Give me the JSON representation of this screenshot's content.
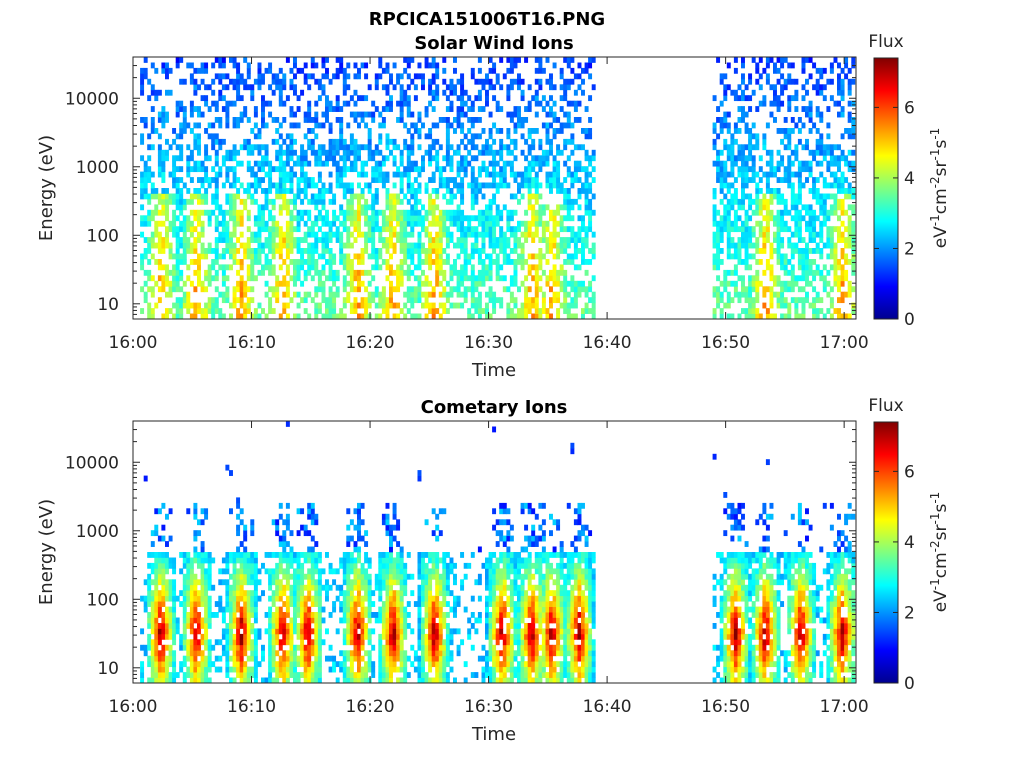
{
  "figure_title": "RPCICA151006T16.PNG",
  "colorbar": {
    "label_html": "eV⁻¹cm⁻²sr⁻¹s⁻¹",
    "header": "Flux",
    "ticks": [
      "0",
      "2",
      "4",
      "6"
    ],
    "range": [
      0,
      7.4
    ],
    "colormap": "jet"
  },
  "chart_data": [
    {
      "type": "heatmap",
      "title": "Solar Wind Ions",
      "xlabel": "Time",
      "ylabel": "Energy (eV)",
      "x_ticks": [
        "16:00",
        "16:10",
        "16:20",
        "16:30",
        "16:40",
        "16:50",
        "17:00"
      ],
      "y_ticks": [
        "10",
        "100",
        "1000",
        "10000"
      ],
      "y_scale": "log",
      "ylim": [
        6,
        40000
      ],
      "xlim_minutes": [
        0,
        61
      ],
      "data_gap_minutes": [
        38.9,
        48.8
      ],
      "intensity_peaks_minutes": [
        2.2,
        5.2,
        9.0,
        12.5,
        18.8,
        21.8,
        25.3,
        33.5,
        35.2,
        53.2,
        59.7
      ],
      "colorbar_label": "Flux"
    },
    {
      "type": "heatmap",
      "title": "Cometary Ions",
      "xlabel": "Time",
      "ylabel": "Energy (eV)",
      "x_ticks": [
        "16:00",
        "16:10",
        "16:20",
        "16:30",
        "16:40",
        "16:50",
        "17:00"
      ],
      "y_ticks": [
        "10",
        "100",
        "1000",
        "10000"
      ],
      "y_scale": "log",
      "ylim": [
        6,
        40000
      ],
      "xlim_minutes": [
        0,
        61
      ],
      "data_gap_minutes": [
        38.9,
        48.8
      ],
      "intensity_peaks_minutes": [
        2.2,
        5.2,
        9.0,
        12.5,
        14.6,
        18.8,
        21.8,
        25.3,
        31.0,
        33.5,
        35.2,
        37.5,
        50.7,
        53.2,
        56.2,
        59.7
      ],
      "colorbar_label": "Flux"
    }
  ]
}
